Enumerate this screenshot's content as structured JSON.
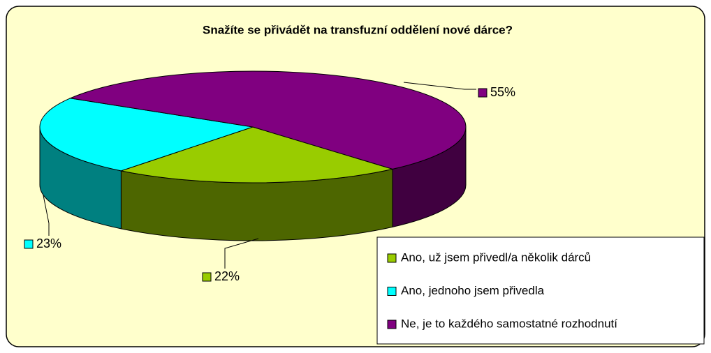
{
  "chart_data": {
    "type": "pie",
    "title": "Snažíte se přivádět na transfuzní oddělení nové dárce?",
    "categories": [
      "Ano, už jsem přivedl/a několik dárců",
      "Ano, jednoho jsem přivedla",
      "Ne, je to každého samostatné rozhodnutí"
    ],
    "values": [
      22,
      23,
      55
    ],
    "value_labels": [
      "22%",
      "23%",
      "55%"
    ],
    "colors": [
      "#99cc00",
      "#00ffff",
      "#800080"
    ],
    "legend": "bottom-right"
  }
}
